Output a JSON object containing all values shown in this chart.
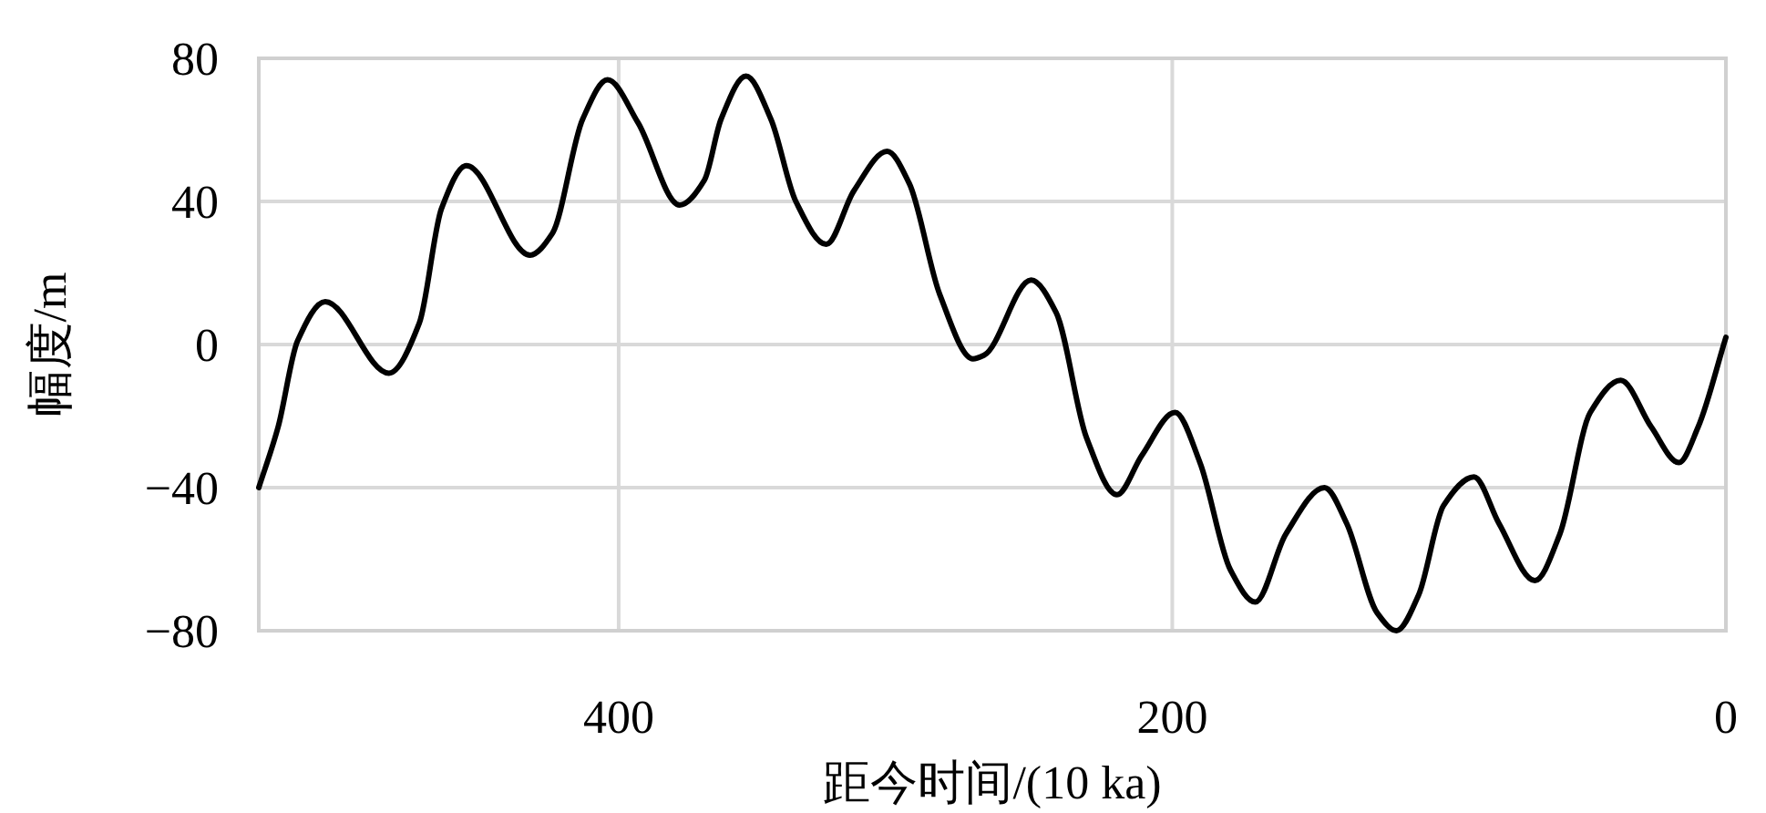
{
  "chart_data": {
    "type": "line",
    "xlabel": "距今时间/(10 ka)",
    "ylabel": "幅度/m",
    "xlim": [
      530,
      0
    ],
    "xticks": [
      400,
      200,
      0
    ],
    "ylim": [
      -80,
      80
    ],
    "yticks": [
      {
        "value": -80,
        "label": "−80"
      },
      {
        "value": -40,
        "label": "−40"
      },
      0,
      40,
      80
    ],
    "grid": true,
    "series": [
      {
        "color": "#000000",
        "x": [
          530,
          523,
          516,
          506,
          483,
          472,
          464,
          455,
          432,
          424,
          413,
          404,
          393,
          378,
          369,
          363,
          354,
          345,
          336,
          325,
          315,
          303,
          295,
          284,
          272,
          268,
          251,
          242,
          231,
          220,
          211,
          199,
          190,
          179,
          170,
          159,
          145,
          137,
          126,
          119,
          111,
          102,
          91,
          82,
          69,
          60,
          49,
          38,
          27,
          17,
          10,
          0
        ],
        "values": [
          -40,
          -23,
          1,
          12,
          -8,
          6,
          38,
          50,
          25,
          31,
          63,
          74,
          62,
          39,
          46,
          63,
          75,
          63,
          40,
          28,
          43,
          54,
          45,
          14,
          -4,
          -3,
          18,
          9,
          -26,
          -42,
          -31,
          -19,
          -33,
          -63,
          -72,
          -53,
          -40,
          -50,
          -75,
          -80,
          -70,
          -45,
          -37,
          -50,
          -66,
          -53,
          -19,
          -10,
          -23,
          -33,
          -23,
          2
        ]
      }
    ]
  }
}
